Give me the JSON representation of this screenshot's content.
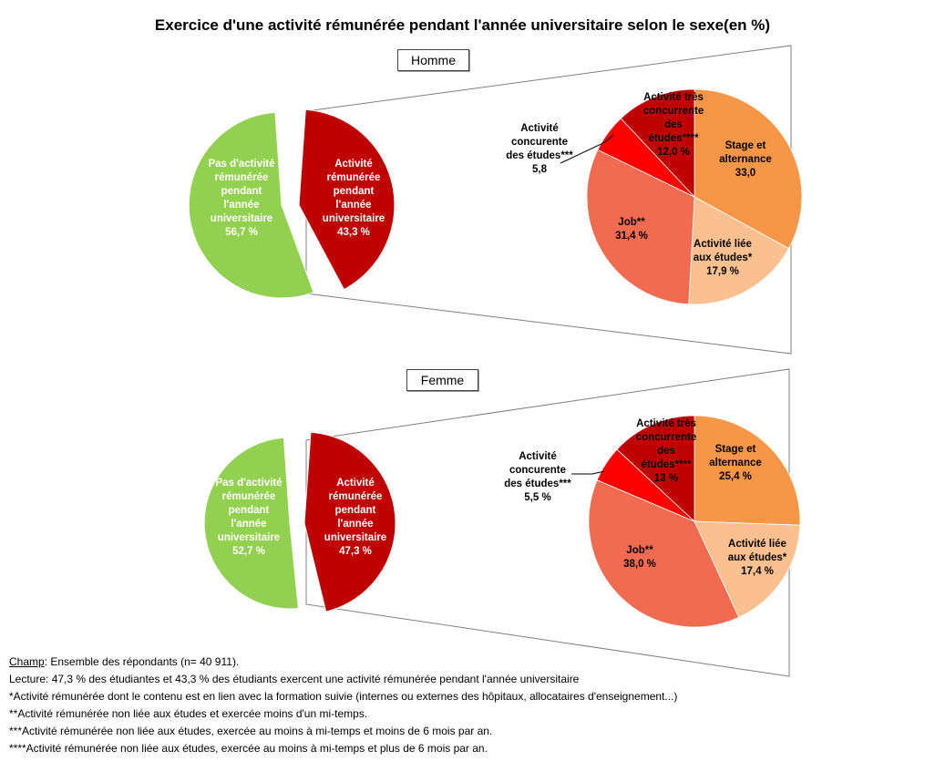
{
  "title": "Exercice d'une activité rémunérée pendant l'année universitaire selon le sexe(en %)",
  "colors": {
    "no_activity": "#92D050",
    "paid_activity": "#C00000",
    "stage": "#F79646",
    "liee": "#FAC090",
    "job": "#F26B50",
    "concurrente": "#FF0000",
    "tres_concurrente": "#C00000"
  },
  "chart_data": [
    {
      "type": "pie",
      "group": "Homme",
      "categories": [
        "Pas d'activité rémunérée pendant l'année universitaire",
        "Activité rémunérée pendant l'année universitaire"
      ],
      "values": [
        56.7,
        43.3
      ]
    },
    {
      "type": "pie",
      "group": "Homme",
      "categories": [
        "Stage et alternance",
        "Activité liée aux études*",
        "Job**",
        "Activité concurente des études***",
        "Activité très concurrente des études****"
      ],
      "values": [
        33.0,
        17.9,
        31.4,
        5.8,
        12.0
      ]
    },
    {
      "type": "pie",
      "group": "Femme",
      "categories": [
        "Pas d'activité rémunérée pendant l'année universitaire",
        "Activité rémunérée pendant l'année universitaire"
      ],
      "values": [
        52.7,
        47.3
      ]
    },
    {
      "type": "pie",
      "group": "Femme",
      "categories": [
        "Stage et alternance",
        "Activité liée aux études*",
        "Job**",
        "Activité concurente des études***",
        "Activité très concurrente des études****"
      ],
      "values": [
        25.4,
        17.4,
        38.0,
        5.5,
        13.0
      ]
    }
  ],
  "homme": {
    "box_label": "Homme",
    "no_act_lines": [
      "Pas d'activité",
      "rémunérée",
      "pendant",
      "l'année",
      "universitaire",
      "56,7 %"
    ],
    "act_lines": [
      "Activité",
      "rémunérée",
      "pendant",
      "l'année",
      "universitaire",
      "43,3 %"
    ],
    "stage_lines": [
      "Stage et",
      "alternance",
      "33,0"
    ],
    "liee_lines": [
      "Activité liée",
      "aux études*",
      "17,9 %"
    ],
    "job_lines": [
      "Job**",
      "31,4  %"
    ],
    "conc_lines": [
      "Activité",
      "concurente",
      "des études***",
      "5,8"
    ],
    "tres_lines": [
      "Activité très",
      "concurrente",
      "des",
      "études****",
      "12,0 %"
    ]
  },
  "femme": {
    "box_label": "Femme",
    "no_act_lines": [
      "Pas d'activité",
      "rémunérée",
      "pendant",
      "l'année",
      "universitaire",
      "52,7 %"
    ],
    "act_lines": [
      "Activité",
      "rémunérée",
      "pendant",
      "l'année",
      "universitaire",
      "47,3 %"
    ],
    "stage_lines": [
      "Stage et",
      "alternance",
      "25,4 %"
    ],
    "liee_lines": [
      "Activité liée",
      "aux études*",
      "17,4 %"
    ],
    "job_lines": [
      "Job**",
      "38,0 %"
    ],
    "conc_lines": [
      "Activité",
      "concurente",
      "des études***",
      "5,5 %"
    ],
    "tres_lines": [
      "Activité très",
      "concurrente",
      "des",
      "études****",
      "13 %"
    ]
  },
  "footer": {
    "champ_label": "Champ",
    "champ_text": ": Ensemble des répondants (n= 40 911).",
    "lecture": "Lecture: 47,3 % des étudiantes et 43,3 % des étudiants exercent une activité rémunérée pendant l'année universitaire",
    "note1": "*Activité rémunérée dont le contenu est en lien avec la formation suivie (internes ou externes des hôpitaux, allocataires d'enseignement...)",
    "note2": "**Activité rémunérée non liée aux études et exercée moins d'un mi-temps.",
    "note3": "***Activité rémunérée non liée aux études, exercée au moins à mi-temps et moins de 6 mois par an.",
    "note4": "****Activité rémunérée non liée aux études, exercée au moins à mi-temps et plus de 6 mois par an."
  }
}
